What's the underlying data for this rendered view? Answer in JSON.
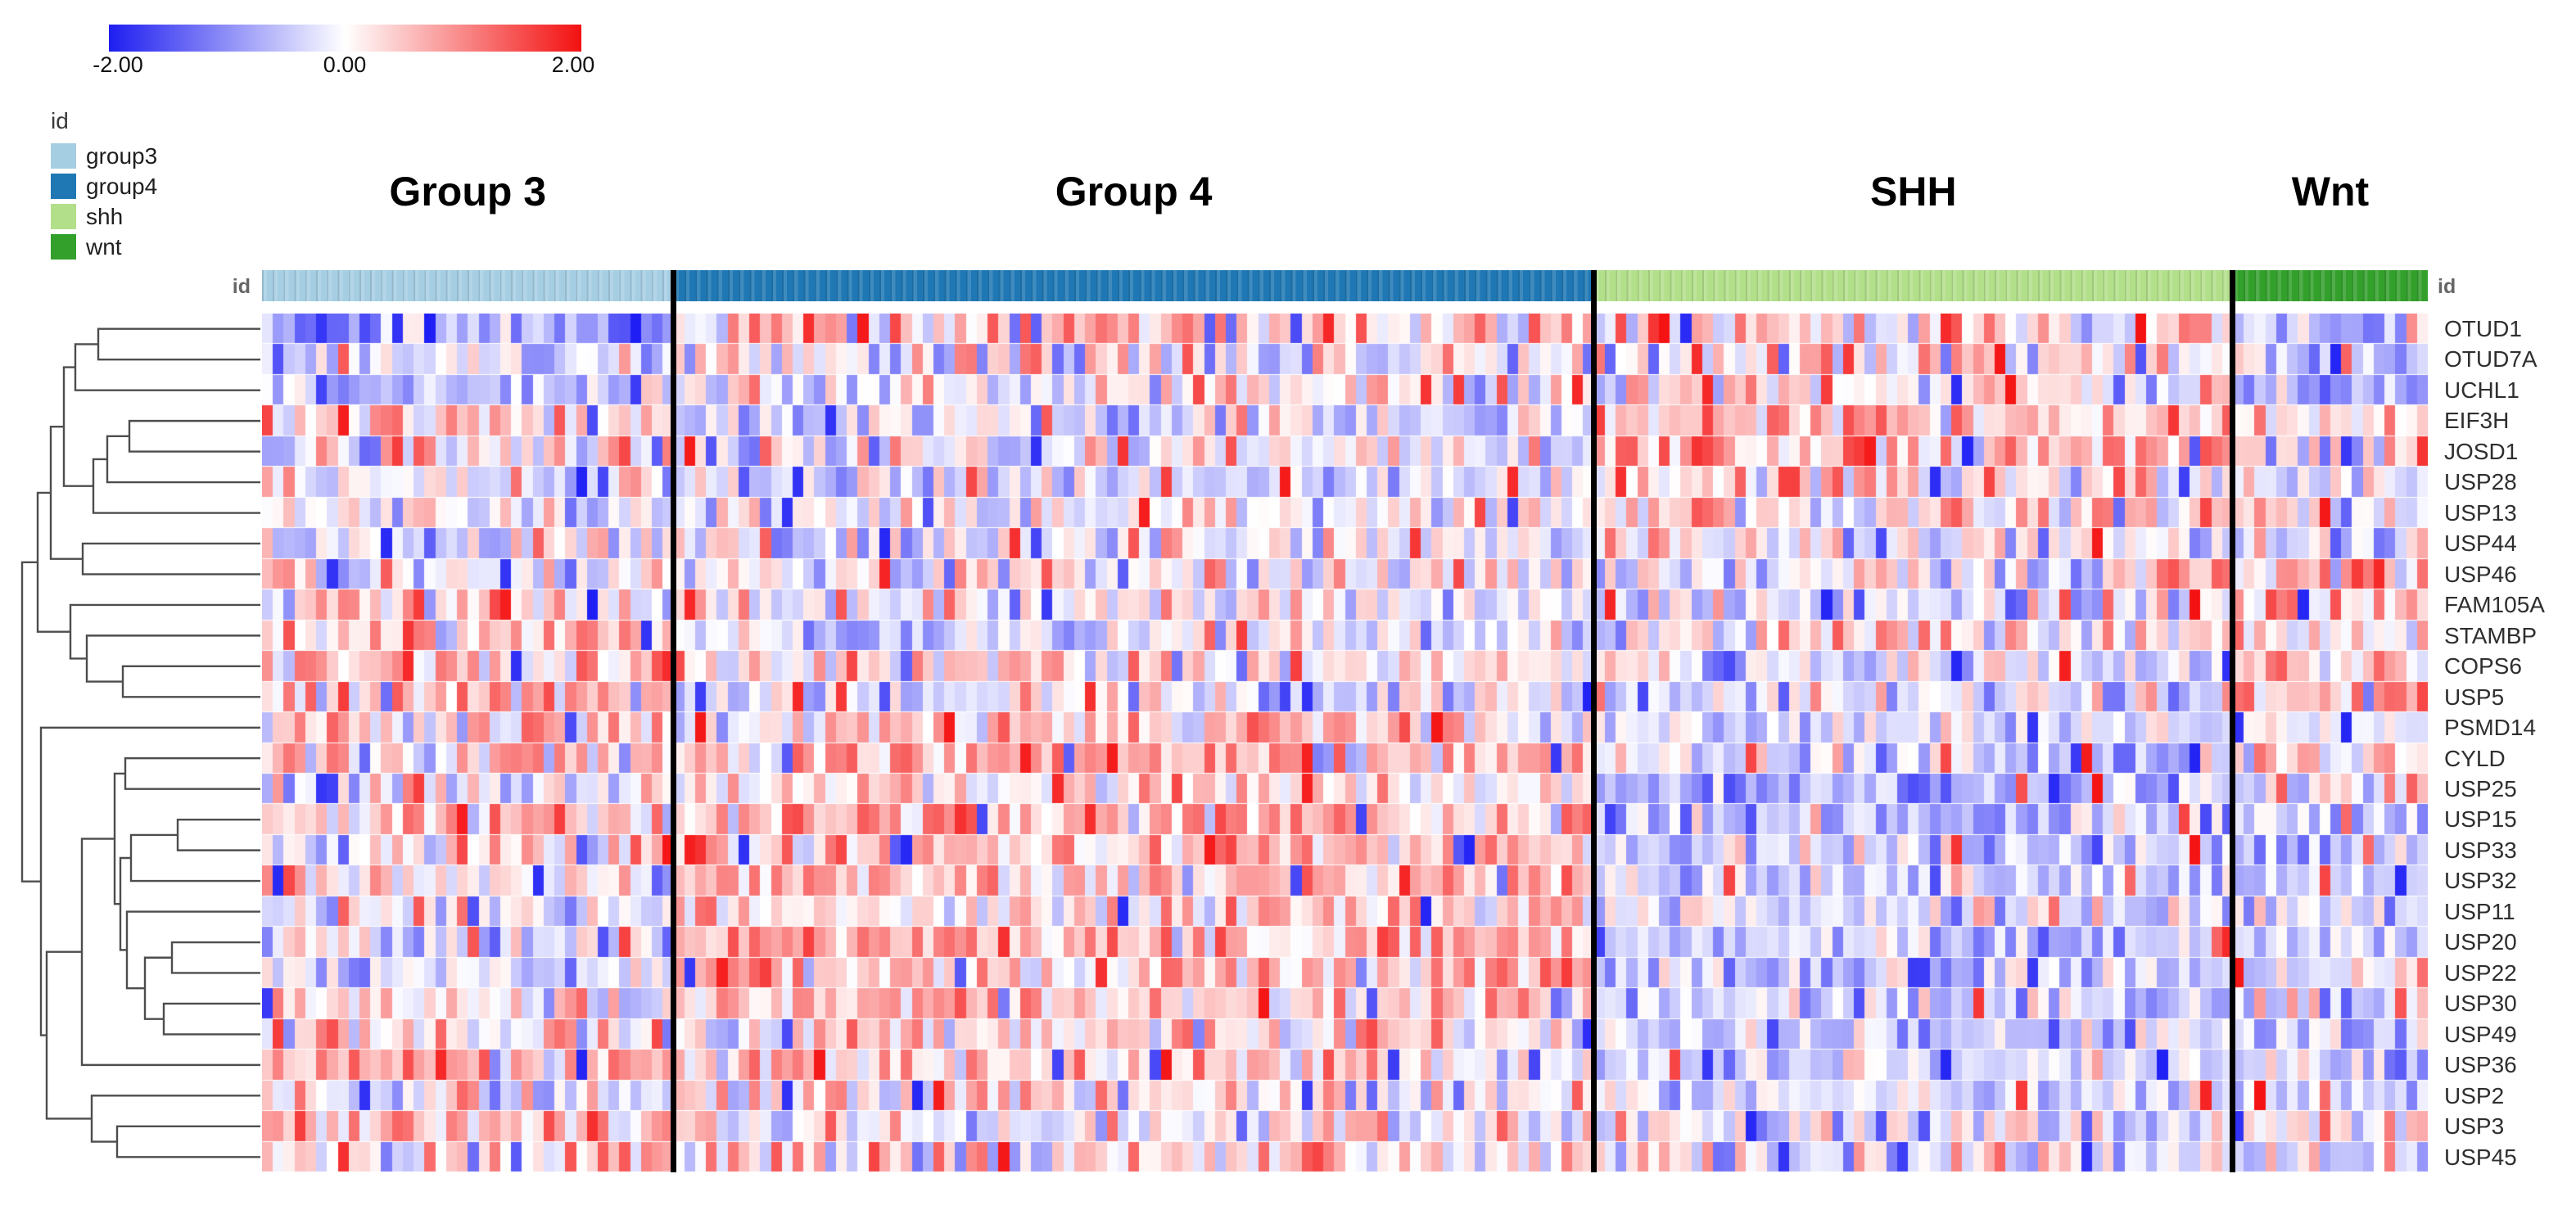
{
  "colorbar": {
    "min_label": "-2.00",
    "mid_label": "0.00",
    "max_label": "2.00",
    "min_color": "#1e1ef0",
    "mid_color": "#ffffff",
    "max_color": "#f31111"
  },
  "legend": {
    "title": "id",
    "items": [
      {
        "id": "group3",
        "label": "group3",
        "color": "#A6CEE3"
      },
      {
        "id": "group4",
        "label": "group4",
        "color": "#1F78B4"
      },
      {
        "id": "shh",
        "label": "shh",
        "color": "#B2DF8A"
      },
      {
        "id": "wnt",
        "label": "wnt",
        "color": "#33A02C"
      }
    ]
  },
  "annotation_bar": {
    "left_label": "id",
    "right_label": "id"
  },
  "chart_data": {
    "type": "heatmap",
    "colormap": {
      "min": -2,
      "mid": 0,
      "max": 2,
      "min_color": "#1e1ef5",
      "mid_color": "#ffffff",
      "max_color": "#f51212",
      "min_tick": "-2.00",
      "mid_tick": "0.00",
      "max_tick": "2.00"
    },
    "column_groups": [
      {
        "name": "Group 3",
        "id": "group3",
        "color": "#A6CEE3",
        "n_samples": 38
      },
      {
        "name": "Group 4",
        "id": "group4",
        "color": "#1F78B4",
        "n_samples": 85
      },
      {
        "name": "SHH",
        "id": "shh",
        "color": "#B2DF8A",
        "n_samples": 59
      },
      {
        "name": "Wnt",
        "id": "wnt",
        "color": "#33A02C",
        "n_samples": 18
      }
    ],
    "genes": [
      "OTUD1",
      "OTUD7A",
      "UCHL1",
      "EIF3H",
      "JOSD1",
      "USP28",
      "USP13",
      "USP44",
      "USP46",
      "FAM105A",
      "STAMBP",
      "COPS6",
      "USP5",
      "PSMD14",
      "CYLD",
      "USP25",
      "USP15",
      "USP33",
      "USP32",
      "USP11",
      "USP20",
      "USP22",
      "USP30",
      "USP49",
      "USP36",
      "USP2",
      "USP3",
      "USP45"
    ],
    "group_order": [
      "group3",
      "group4",
      "shh",
      "wnt"
    ],
    "row_group_means": [
      [
        -0.8,
        0.35,
        0.1,
        -0.5
      ],
      [
        -0.4,
        -0.05,
        0.3,
        -0.35
      ],
      [
        -0.55,
        0.0,
        0.2,
        -0.6
      ],
      [
        0.4,
        -0.35,
        0.6,
        0.2
      ],
      [
        0.1,
        -0.1,
        0.55,
        0.2
      ],
      [
        -0.2,
        -0.3,
        0.4,
        -0.1
      ],
      [
        -0.3,
        0.0,
        0.3,
        0.0
      ],
      [
        -0.1,
        0.0,
        0.05,
        -0.2
      ],
      [
        -0.35,
        0.1,
        0.05,
        0.7
      ],
      [
        0.3,
        0.0,
        -0.2,
        0.5
      ],
      [
        0.25,
        -0.2,
        0.3,
        0.3
      ],
      [
        0.4,
        0.1,
        -0.2,
        0.45
      ],
      [
        0.5,
        -0.2,
        -0.2,
        0.8
      ],
      [
        0.3,
        0.3,
        -0.3,
        -0.2
      ],
      [
        0.4,
        0.5,
        -0.45,
        0.4
      ],
      [
        0.0,
        0.2,
        -0.6,
        0.0
      ],
      [
        0.3,
        0.5,
        -0.5,
        -0.6
      ],
      [
        0.3,
        0.5,
        -0.45,
        -0.5
      ],
      [
        0.2,
        0.4,
        -0.4,
        -0.4
      ],
      [
        0.0,
        0.3,
        -0.3,
        -0.1
      ],
      [
        -0.1,
        0.6,
        -0.5,
        -0.3
      ],
      [
        -0.1,
        0.5,
        -0.5,
        -0.3
      ],
      [
        0.1,
        0.4,
        -0.4,
        -0.4
      ],
      [
        0.2,
        0.2,
        -0.4,
        -0.5
      ],
      [
        0.5,
        0.3,
        -0.3,
        -0.3
      ],
      [
        -0.3,
        0.1,
        -0.4,
        -0.3
      ],
      [
        0.6,
        0.0,
        -0.2,
        -0.2
      ],
      [
        0.3,
        0.2,
        -0.1,
        -0.3
      ]
    ],
    "row_group_sds": [
      [
        0.6,
        0.75,
        0.8,
        0.6
      ],
      [
        0.5,
        0.6,
        0.7,
        0.6
      ],
      [
        0.5,
        0.5,
        0.7,
        0.5
      ],
      [
        0.55,
        0.55,
        0.6,
        0.5
      ],
      [
        0.8,
        0.6,
        0.7,
        0.7
      ],
      [
        0.55,
        0.5,
        0.6,
        0.5
      ],
      [
        0.5,
        0.5,
        0.6,
        0.5
      ],
      [
        0.8,
        0.65,
        0.6,
        0.6
      ],
      [
        0.6,
        0.6,
        0.6,
        0.6
      ],
      [
        0.6,
        0.5,
        0.5,
        0.6
      ],
      [
        0.65,
        0.55,
        0.6,
        0.6
      ],
      [
        0.6,
        0.55,
        0.55,
        0.6
      ],
      [
        0.6,
        0.55,
        0.6,
        0.6
      ],
      [
        0.6,
        0.6,
        0.4,
        0.4
      ],
      [
        0.6,
        0.55,
        0.5,
        0.6
      ],
      [
        0.55,
        0.55,
        0.45,
        0.6
      ],
      [
        0.6,
        0.55,
        0.55,
        0.5
      ],
      [
        0.65,
        0.6,
        0.5,
        0.5
      ],
      [
        0.6,
        0.5,
        0.45,
        0.45
      ],
      [
        0.5,
        0.55,
        0.5,
        0.45
      ],
      [
        0.6,
        0.55,
        0.5,
        0.5
      ],
      [
        0.5,
        0.55,
        0.5,
        0.45
      ],
      [
        0.55,
        0.5,
        0.45,
        0.5
      ],
      [
        0.6,
        0.6,
        0.5,
        0.55
      ],
      [
        0.6,
        0.6,
        0.5,
        0.55
      ],
      [
        0.6,
        0.55,
        0.4,
        0.45
      ],
      [
        0.55,
        0.5,
        0.6,
        0.6
      ],
      [
        0.6,
        0.55,
        0.55,
        0.5
      ]
    ],
    "dendrogram": {
      "leaf_count": 28,
      "merges": [
        [
          0,
          1,
          120
        ],
        [
          28,
          2,
          92
        ],
        [
          3,
          4,
          158
        ],
        [
          30,
          5,
          131
        ],
        [
          31,
          6,
          114
        ],
        [
          29,
          32,
          78
        ],
        [
          7,
          8,
          101
        ],
        [
          33,
          34,
          62
        ],
        [
          11,
          12,
          150
        ],
        [
          10,
          36,
          106
        ],
        [
          9,
          37,
          86
        ],
        [
          35,
          38,
          46
        ],
        [
          14,
          15,
          153
        ],
        [
          16,
          17,
          217
        ],
        [
          41,
          18,
          160
        ],
        [
          20,
          21,
          210
        ],
        [
          22,
          23,
          200
        ],
        [
          43,
          44,
          177
        ],
        [
          19,
          45,
          155
        ],
        [
          42,
          46,
          147
        ],
        [
          40,
          47,
          140
        ],
        [
          26,
          27,
          143
        ],
        [
          25,
          49,
          112
        ],
        [
          48,
          24,
          100
        ],
        [
          51,
          50,
          57
        ],
        [
          13,
          52,
          50
        ],
        [
          39,
          53,
          27
        ]
      ]
    },
    "render_seed": 42
  }
}
